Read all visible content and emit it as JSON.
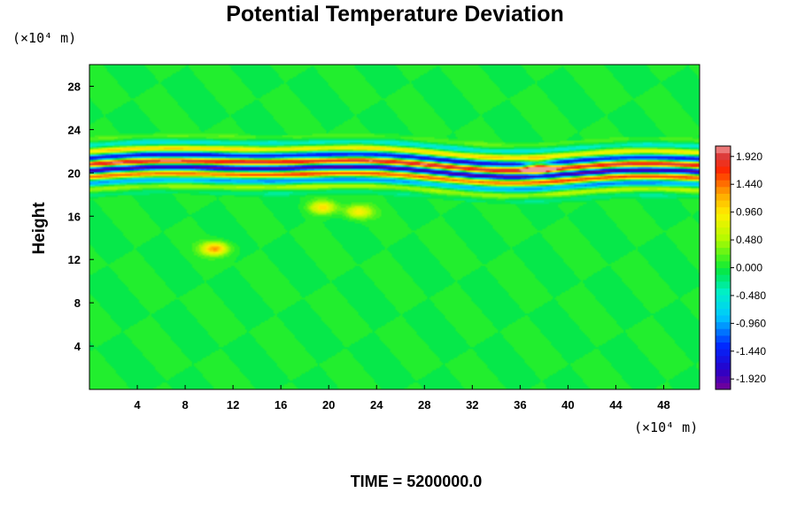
{
  "chart_data": {
    "type": "heatmap",
    "title": "Potential Temperature Deviation",
    "xlabel": "",
    "ylabel": "Height",
    "x_unit": "(×10⁴ m)",
    "y_unit": "(×10⁴ m)",
    "xlim": [
      0,
      51
    ],
    "ylim": [
      0,
      30
    ],
    "x_ticks": [
      4,
      8,
      12,
      16,
      20,
      24,
      28,
      32,
      36,
      40,
      44,
      48
    ],
    "y_ticks": [
      4,
      8,
      12,
      16,
      20,
      24,
      28
    ],
    "colorbar": {
      "min": -2.1,
      "max": 2.1,
      "tick_labels": [
        "1.920",
        "1.440",
        "0.960",
        "0.480",
        "0.000",
        "-0.480",
        "-0.960",
        "-1.440",
        "-1.920"
      ],
      "tick_values": [
        1.92,
        1.44,
        0.96,
        0.48,
        0.0,
        -0.48,
        -0.96,
        -1.44,
        -1.92
      ]
    },
    "features": [
      {
        "description": "oscillating band",
        "y_center": 20.5,
        "y_halfwidth": 1.8,
        "amplitude": 2.0
      },
      {
        "description": "warm blob",
        "x": 10.5,
        "y": 13.0,
        "value": 1.3
      },
      {
        "description": "warm blob",
        "x": 19.5,
        "y": 16.8,
        "value": 1.0
      },
      {
        "description": "warm blob",
        "x": 22.5,
        "y": 16.4,
        "value": 0.9
      },
      {
        "description": "wave disturbance",
        "x": 37.5,
        "y": 20.5,
        "value": 2.0
      }
    ],
    "background_value": 0.0
  },
  "footer": {
    "time_text": "TIME = 5200000.0"
  }
}
